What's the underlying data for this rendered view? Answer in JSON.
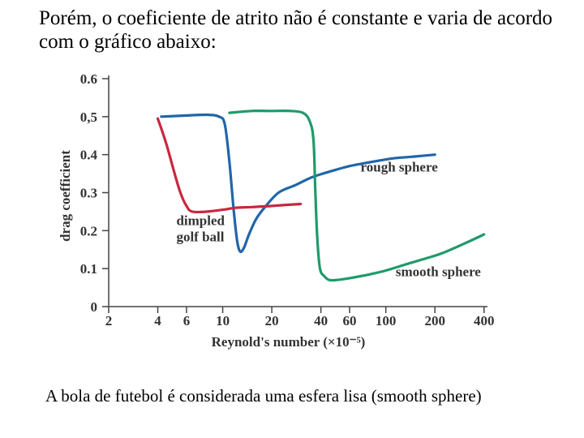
{
  "intro_text": "Porém, o coeficiente de atrito não é constante e varia de acordo com o gráfico abaixo:",
  "caption_text": "A bola de futebol é considerada uma esfera lisa (smooth sphere)",
  "chart_data": {
    "type": "line",
    "xscale": "log",
    "xlabel": "Reynold's number (×10⁻⁵)",
    "ylabel": "drag coefficient",
    "xticks": [
      2,
      4,
      6,
      10,
      20,
      40,
      60,
      100,
      200,
      400
    ],
    "yticks": [
      0,
      0.1,
      0.2,
      0.3,
      0.4,
      0.5,
      0.6
    ],
    "ytick_labels": [
      "0",
      "0.1",
      "0.2",
      "0.3",
      "0.4",
      "0,5",
      "0.6"
    ],
    "xlim": [
      2,
      420
    ],
    "ylim": [
      0,
      0.6
    ],
    "series": [
      {
        "name": "rough sphere",
        "color": "#2166a8",
        "points": [
          [
            4.2,
            0.5
          ],
          [
            6,
            0.503
          ],
          [
            8,
            0.505
          ],
          [
            9.5,
            0.5
          ],
          [
            10.3,
            0.48
          ],
          [
            11,
            0.38
          ],
          [
            11.7,
            0.25
          ],
          [
            12.3,
            0.17
          ],
          [
            12.8,
            0.145
          ],
          [
            13.5,
            0.155
          ],
          [
            14.5,
            0.19
          ],
          [
            16,
            0.23
          ],
          [
            18,
            0.26
          ],
          [
            22,
            0.3
          ],
          [
            28,
            0.32
          ],
          [
            35,
            0.34
          ],
          [
            45,
            0.355
          ],
          [
            60,
            0.37
          ],
          [
            80,
            0.38
          ],
          [
            110,
            0.39
          ],
          [
            150,
            0.395
          ],
          [
            200,
            0.4
          ]
        ]
      },
      {
        "name": "smooth sphere",
        "color": "#1f9a6a",
        "points": [
          [
            11,
            0.51
          ],
          [
            15,
            0.515
          ],
          [
            20,
            0.515
          ],
          [
            26,
            0.515
          ],
          [
            31,
            0.51
          ],
          [
            34,
            0.49
          ],
          [
            36,
            0.44
          ],
          [
            37,
            0.3
          ],
          [
            38,
            0.18
          ],
          [
            39.5,
            0.1
          ],
          [
            42,
            0.08
          ],
          [
            45,
            0.07
          ],
          [
            50,
            0.07
          ],
          [
            60,
            0.075
          ],
          [
            70,
            0.08
          ],
          [
            80,
            0.085
          ],
          [
            100,
            0.095
          ],
          [
            130,
            0.11
          ],
          [
            170,
            0.125
          ],
          [
            220,
            0.14
          ],
          [
            300,
            0.165
          ],
          [
            400,
            0.19
          ]
        ]
      },
      {
        "name": "dimpled golf ball",
        "color": "#c8283f",
        "points": [
          [
            4,
            0.495
          ],
          [
            4.5,
            0.43
          ],
          [
            5,
            0.36
          ],
          [
            5.5,
            0.3
          ],
          [
            6,
            0.265
          ],
          [
            6.5,
            0.25
          ],
          [
            8,
            0.25
          ],
          [
            10,
            0.255
          ],
          [
            12,
            0.26
          ],
          [
            15,
            0.262
          ],
          [
            20,
            0.265
          ],
          [
            25,
            0.268
          ],
          [
            30,
            0.27
          ]
        ]
      }
    ],
    "annotations": [
      {
        "lines": [
          "rough sphere"
        ],
        "x": 70,
        "y": 0.355
      },
      {
        "lines": [
          "smooth sphere"
        ],
        "x": 115,
        "y": 0.08
      },
      {
        "lines": [
          "dimpled",
          "golf ball"
        ],
        "x": 5.2,
        "y": 0.215
      }
    ]
  }
}
